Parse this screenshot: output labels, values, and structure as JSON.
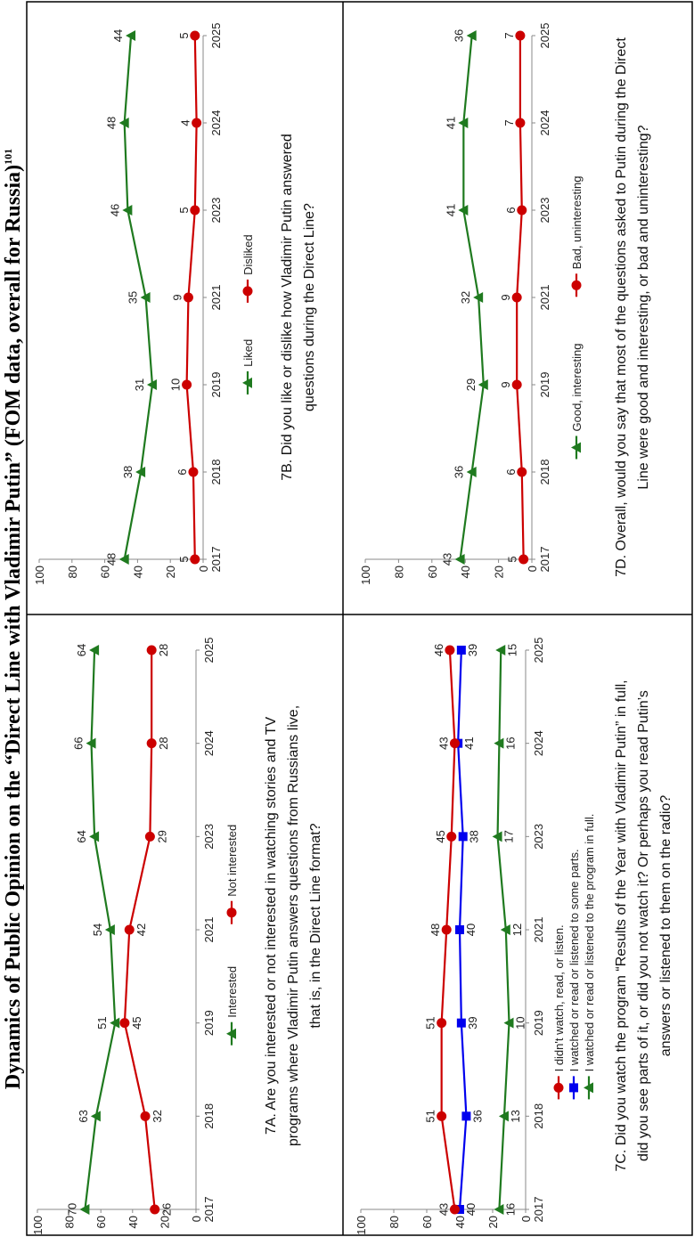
{
  "title": "Dynamics of Public Opinion on the “Direct Line with Vladimir Putin” (FOM data, overall for Russia)",
  "title_superscript": "101",
  "chart_data": [
    {
      "type": "line",
      "title": "7A. Are you interested or not interested in watching stories and TV programs where Vladimir Putin answers questions from Russians live, that is, in the Direct Line format?",
      "categories": [
        "2017",
        "2018",
        "2019",
        "2021",
        "2023",
        "2024",
        "2025"
      ],
      "series": [
        {
          "name": "Interested",
          "color": "#1f7a1f",
          "marker": "triangle",
          "values": [
            70,
            63,
            51,
            54,
            64,
            66,
            64
          ]
        },
        {
          "name": "Not interested",
          "color": "#cc0000",
          "marker": "circle",
          "values": [
            26,
            32,
            45,
            42,
            29,
            28,
            28
          ]
        }
      ],
      "ylim": [
        0,
        100
      ],
      "yticks": [
        0,
        20,
        40,
        60,
        80,
        100
      ]
    },
    {
      "type": "line",
      "title": "7B. Did you like or dislike how Vladimir Putin answered questions during the Direct Line?",
      "categories": [
        "2017",
        "2018",
        "2019",
        "2021",
        "2023",
        "2024",
        "2025"
      ],
      "series": [
        {
          "name": "Liked",
          "color": "#1f7a1f",
          "marker": "triangle",
          "values": [
            48,
            38,
            31,
            35,
            46,
            48,
            44
          ]
        },
        {
          "name": "Disliked",
          "color": "#cc0000",
          "marker": "circle",
          "values": [
            5,
            6,
            10,
            9,
            5,
            4,
            5
          ]
        }
      ],
      "ylim": [
        0,
        100
      ],
      "yticks": [
        0,
        20,
        40,
        60,
        80,
        100
      ]
    },
    {
      "type": "line",
      "title": "7C. Did you watch the program “Results of the Year with Vladimir Putin” in full, did you see parts of it, or did you not watch it? Or perhaps you read Putin’s answers or listened to them on the radio?",
      "categories": [
        "2017",
        "2018",
        "2019",
        "2021",
        "2023",
        "2024",
        "2025"
      ],
      "series": [
        {
          "name": "I watched or read or listened to the program in full.",
          "color": "#1f7a1f",
          "marker": "triangle",
          "values": [
            16,
            13,
            10,
            12,
            17,
            16,
            15
          ]
        },
        {
          "name": "I watched or read or listened to some parts.",
          "color": "#0000ee",
          "marker": "square",
          "values": [
            40,
            36,
            39,
            40,
            38,
            41,
            39
          ]
        },
        {
          "name": "I didn't watch, read, or listen.",
          "color": "#cc0000",
          "marker": "circle",
          "values": [
            43,
            51,
            51,
            48,
            45,
            43,
            46
          ]
        }
      ],
      "ylim": [
        0,
        100
      ],
      "yticks": [
        0,
        20,
        40,
        60,
        80,
        100
      ]
    },
    {
      "type": "line",
      "title": "7D. Overall, would you say that most of the questions asked to Putin during the Direct Line were good and interesting, or bad and uninteresting?",
      "categories": [
        "2017",
        "2018",
        "2019",
        "2021",
        "2023",
        "2024",
        "2025"
      ],
      "series": [
        {
          "name": "Good, interesting",
          "color": "#1f7a1f",
          "marker": "triangle",
          "values": [
            43,
            36,
            29,
            32,
            41,
            41,
            36
          ]
        },
        {
          "name": "Bad, uninteresting",
          "color": "#cc0000",
          "marker": "circle",
          "values": [
            5,
            6,
            9,
            9,
            6,
            7,
            7
          ]
        }
      ],
      "ylim": [
        0,
        100
      ],
      "yticks": [
        0,
        20,
        40,
        60,
        80,
        100
      ]
    }
  ]
}
